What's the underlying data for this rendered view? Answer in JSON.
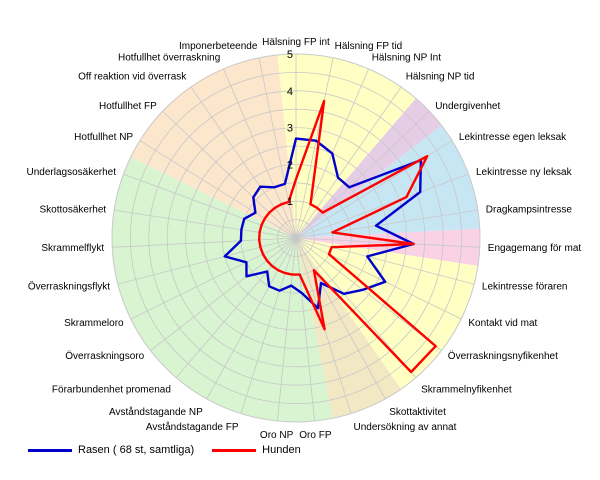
{
  "chart_data": {
    "type": "radar",
    "categories": [
      "Hälsning FP int",
      "Hälsning FP tid",
      "Hälsning NP Int",
      "Hälsning NP tid",
      "Undergivenhet",
      "Lekintresse egen leksak",
      "Lekintresse ny leksak",
      "Dragkampsintresse",
      "Engagemang för mat",
      "Lekintresse föraren",
      "Kontakt vid mat",
      "Överraskningsnyfikenhet",
      "Skrammelnyfikenhet",
      "Skottaktivitet",
      "Undersökning av annat",
      "Oro FP",
      "Oro NP",
      "Avståndstagande FP",
      "Avståndstagande NP",
      "Förarbundenhet promenad",
      "Överraskningsoro",
      "Skrammeloro",
      "Överraskningsflykt",
      "Skrammelflykt",
      "Skottosäkerhet",
      "Underlagsosäkerhet",
      "Hotfullhet NP",
      "Hotfullhet FP",
      "Off reaktion vid överrask",
      "Hotfullhet överraskning",
      "Imponerbeteende"
    ],
    "rlim": [
      0,
      5
    ],
    "ticks": [
      "1",
      "2",
      "3",
      "4",
      "5"
    ],
    "series": [
      {
        "name": "Rasen ( 68 st, samtliga)",
        "color": "#0000cc",
        "values": [
          2.7,
          2.7,
          2.5,
          2.0,
          2.0,
          4.0,
          3.6,
          2.2,
          3.2,
          2.0,
          2.7,
          2.3,
          2.0,
          1.4,
          2.0,
          1.5,
          1.3,
          1.5,
          1.5,
          1.2,
          1.7,
          1.5,
          2.0,
          1.5,
          1.5,
          1.5,
          1.3,
          1.6,
          1.7,
          1.5,
          1.5
        ]
      },
      {
        "name": "Hunden",
        "color": "#ff0000",
        "values": [
          1.6,
          3.8,
          1.0,
          1.0,
          1.0,
          4.2,
          3.2,
          1.0,
          3.2,
          1.0,
          1.0,
          4.8,
          4.8,
          1.0,
          2.6,
          1.0,
          1.0,
          1.0,
          1.0,
          1.0,
          1.0,
          1.0,
          1.0,
          1.0,
          1.0,
          1.0,
          1.0,
          1.0,
          1.0,
          1.0,
          1.0
        ]
      }
    ],
    "shading": [
      {
        "color": "#ffffc4",
        "categories": [
          "Hälsning FP int",
          "Hälsning FP tid",
          "Hälsning NP Int",
          "Hälsning NP tid"
        ]
      },
      {
        "color": "#e6cde6",
        "categories": [
          "Undergivenhet"
        ]
      },
      {
        "color": "#c7e6f4",
        "categories": [
          "Lekintresse egen leksak",
          "Lekintresse ny leksak",
          "Dragkampsintresse"
        ]
      },
      {
        "color": "#f9d2e6",
        "categories": [
          "Engagemang för mat"
        ]
      },
      {
        "color": "#ffffc4",
        "categories": [
          "Lekintresse föraren",
          "Kontakt vid mat",
          "Överraskningsnyfikenhet",
          "Skrammelnyfikenhet"
        ]
      },
      {
        "color": "#f2e8c4",
        "categories": [
          "Skottaktivitet",
          "Undersökning av annat"
        ]
      },
      {
        "color": "#d8f4d0",
        "categories": [
          "Oro FP",
          "Oro NP",
          "Avståndstagande FP",
          "Avståndstagande NP",
          "Förarbundenhet promenad",
          "Överraskningsoro",
          "Skrammeloro",
          "Överraskningsflykt",
          "Skrammelflykt",
          "Skottosäkerhet",
          "Underlagsosäkerhet"
        ]
      },
      {
        "color": "#fce6cc",
        "categories": [
          "Hotfullhet NP",
          "Hotfullhet FP",
          "Off reaktion vid överrask",
          "Hotfullhet överraskning",
          "Imponerbeteende"
        ]
      }
    ],
    "grid": true,
    "legend_position": "bottom-left"
  }
}
